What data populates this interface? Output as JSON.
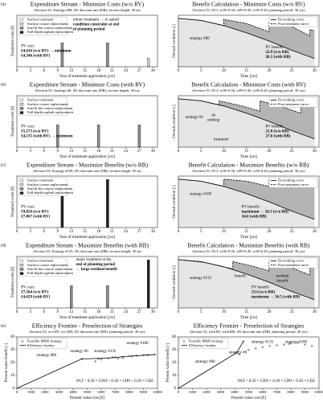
{
  "chart_data": [
    {
      "type": "bar",
      "panel_label": "(a)",
      "title": "Expenditure Stream - Minimize Costs (w/o RV)",
      "subtitle": "(Section 55; Strategy #80; 4% discount rate (DR); section length: 30 m)",
      "xlabel": "Year of treatment application [yrs]",
      "ylabel": "Treatment costs [€]",
      "xlim": [
        0,
        31
      ],
      "xticks": [
        0,
        3,
        6,
        9,
        12,
        15,
        18,
        21,
        24,
        27,
        30
      ],
      "ylim": [
        0,
        6000
      ],
      "legend": "upper left",
      "series": [
        {
          "name": "Surface treatment",
          "color": "#ffffff",
          "x": [],
          "values": []
        },
        {
          "name": "Surface course replacement",
          "color": "#d0d0d0",
          "x": [
            29
          ],
          "values": [
            1000
          ]
        },
        {
          "name": "Surf.& bin course replacement",
          "color": "#8a8a8a",
          "x": [
            10,
            20
          ],
          "values": [
            2800,
            2800
          ]
        },
        {
          "name": "Full-depth asphalt replacement",
          "color": "#222222",
          "x": [],
          "values": []
        }
      ],
      "notes": [
        [
          "minor treatment → to satisfy",
          "condition constraint at end",
          "of planning period"
        ],
        [
          "PV cost:",
          "€4,616 (w/o RV) → minimum",
          "€4,346 (with RV)"
        ]
      ]
    },
    {
      "type": "line",
      "title": "Benefit Calculation - Minimize Costs (w/o RV)",
      "subtitle": "(Section 55; OCI: wOI=0.50, wPI=0.30, wSI=0.20; planning period: 30 yrs)",
      "xlabel": "Time [yrs]",
      "ylabel": "Overall condition [-]",
      "xlim": [
        0,
        31
      ],
      "xticks": [
        0,
        5,
        10,
        15,
        20,
        25,
        30
      ],
      "ylim": [
        0,
        5
      ],
      "legend": "upper right",
      "series": [
        {
          "name": "Do-nothing curve",
          "color": "#000000",
          "x": [
            0,
            5,
            10,
            15,
            20,
            25,
            30
          ],
          "values": [
            4.7,
            4.5,
            4.0,
            3.3,
            2.5,
            1.6,
            0.8
          ]
        },
        {
          "name": "Post-treatment curve",
          "color": "#000000",
          "dash": true,
          "x": [
            0,
            5,
            10,
            10,
            15,
            20,
            20,
            25,
            29,
            29,
            30
          ],
          "values": [
            4.7,
            4.5,
            4.0,
            4.6,
            4.2,
            3.4,
            4.4,
            3.9,
            3.0,
            3.6,
            3.5
          ]
        }
      ],
      "notes": [
        [
          "strategy #80"
        ],
        [
          "PV benefit:",
          "22.9 (w/o RB)",
          "26.5 (with RB)"
        ]
      ]
    },
    {
      "type": "bar",
      "panel_label": "(b)",
      "title": "Expenditure Stream - Minimize Costs (with RV)",
      "subtitle": "(Section 55; Strategy #6; 4% discount rate (DR); section length: 30 m)",
      "xlabel": "Year of treatment application [yrs]",
      "ylabel": "Treatment costs [€]",
      "xlim": [
        0,
        31
      ],
      "xticks": [
        0,
        3,
        6,
        9,
        12,
        15,
        18,
        21,
        24,
        27,
        30
      ],
      "ylim": [
        0,
        6000
      ],
      "legend": "upper left",
      "series": [
        {
          "name": "Surface treatment",
          "color": "#ffffff",
          "x": [],
          "values": []
        },
        {
          "name": "Surface course replacement",
          "color": "#d0d0d0",
          "x": [],
          "values": []
        },
        {
          "name": "Surf.& bin course replacement",
          "color": "#8a8a8a",
          "x": [
            9,
            18,
            27
          ],
          "values": [
            2600,
            2600,
            2600
          ]
        },
        {
          "name": "Full-depth asphalt replacement",
          "color": "#222222",
          "x": [],
          "values": []
        }
      ],
      "notes": [
        [
          "PV cost:",
          "€5,573 (w/o RV)",
          "€4,135 (with RV) → minimum"
        ]
      ]
    },
    {
      "type": "line",
      "title": "Benefit Calculation - Minimize Costs (with RV)",
      "subtitle": "(Section 55; OCI: wOI=0.50, wPI=0.30, wSI=0.20; planning period: 30 yrs)",
      "xlabel": "Time [yrs]",
      "ylabel": "Overall condition [-]",
      "xlim": [
        0,
        31
      ],
      "xticks": [
        0,
        5,
        10,
        15,
        20,
        25,
        30
      ],
      "ylim": [
        0,
        5
      ],
      "legend": "upper right",
      "series": [
        {
          "name": "Do-nothing curve",
          "color": "#000000",
          "x": [
            0,
            5,
            10,
            15,
            20,
            25,
            30
          ],
          "values": [
            4.7,
            4.5,
            4.0,
            3.3,
            2.5,
            1.6,
            0.8
          ]
        },
        {
          "name": "Post-treatment curve",
          "color": "#000000",
          "dash": true,
          "x": [
            0,
            5,
            9,
            9,
            14,
            18,
            18,
            23,
            27,
            27,
            30
          ],
          "values": [
            4.7,
            4.5,
            4.1,
            4.5,
            4.0,
            3.5,
            4.5,
            3.9,
            3.3,
            4.5,
            4.2
          ]
        }
      ],
      "notes": [
        [
          "strategy #6"
        ],
        [
          "do",
          "nothing"
        ],
        [
          "treatment"
        ],
        [
          "PV benefit:",
          "21.0 (w/o RB)",
          "27.6 (with RB)"
        ]
      ]
    },
    {
      "type": "bar",
      "panel_label": "(c)",
      "title": "Expenditure Stream - Maximize Benefits (w/o RB)",
      "subtitle": "(Section 55; Strategy #180; 4% discount rate (DR); section length: 30 m)",
      "xlabel": "Year of treatment application [yrs]",
      "ylabel": "Treatment costs [€]",
      "xlim": [
        0,
        31
      ],
      "xticks": [
        0,
        3,
        6,
        9,
        12,
        15,
        18,
        21,
        24,
        27,
        30
      ],
      "ylim": [
        0,
        6000
      ],
      "legend": "upper left",
      "series": [
        {
          "name": "Surface treatment",
          "color": "#ffffff",
          "x": [],
          "values": []
        },
        {
          "name": "Surface course replacement",
          "color": "#d0d0d0",
          "x": [],
          "values": []
        },
        {
          "name": "Surf.& bin course replacement",
          "color": "#8a8a8a",
          "x": [],
          "values": []
        },
        {
          "name": "Full-depth asphalt replacement",
          "color": "#222222",
          "x": [
            10,
            20
          ],
          "values": [
            5600,
            5600
          ]
        }
      ],
      "notes": [
        [
          "PV cost:",
          "€9,824 (w/o RV)",
          "€7,867 (with RV)"
        ]
      ]
    },
    {
      "type": "line",
      "title": "Benefit Calculation - Maximize Benefits (w/o RB)",
      "subtitle": "(Section 55; OCI: wOI=0.50, wPI=0.30, wSI=0.20; planning period: 30 yrs)",
      "xlabel": "Time [yrs]",
      "ylabel": "Overall condition [-]",
      "xlim": [
        0,
        31
      ],
      "xticks": [
        0,
        5,
        10,
        15,
        20,
        25,
        30
      ],
      "ylim": [
        0,
        5
      ],
      "legend": "upper right",
      "series": [
        {
          "name": "Do-nothing curve",
          "color": "#000000",
          "x": [
            0,
            5,
            10,
            15,
            20,
            25,
            30
          ],
          "values": [
            4.7,
            4.5,
            4.0,
            3.3,
            2.5,
            1.6,
            0.8
          ]
        },
        {
          "name": "Post-treatment curve",
          "color": "#000000",
          "dash": true,
          "x": [
            0,
            5,
            10,
            10,
            15,
            20,
            20,
            25,
            30
          ],
          "values": [
            4.7,
            4.5,
            4.0,
            4.7,
            4.5,
            4.0,
            4.7,
            4.5,
            4.0
          ]
        }
      ],
      "notes": [
        [
          "strategy #180"
        ],
        [
          "PV benefit:",
          "maximum → 26.3 (w/o RB)",
          "34.6 (with RB)"
        ]
      ]
    },
    {
      "type": "bar",
      "panel_label": "(d)",
      "title": "Expenditure Stream - Maximize Benefits (with RB)",
      "subtitle": "(Section 55; Strategy #135; 4% discount rate (DR); section length: 30 m)",
      "xlabel": "Year of treatment application [yrs]",
      "ylabel": "Treatment costs [€]",
      "xlim": [
        0,
        31
      ],
      "xticks": [
        0,
        3,
        6,
        9,
        12,
        15,
        18,
        21,
        24,
        27,
        30
      ],
      "ylim": [
        0,
        6000
      ],
      "legend": "upper left",
      "series": [
        {
          "name": "Surface treatment",
          "color": "#ffffff",
          "x": [],
          "values": []
        },
        {
          "name": "Surface course replacement",
          "color": "#d0d0d0",
          "x": [],
          "values": []
        },
        {
          "name": "Surf.& bin course replacement",
          "color": "#8a8a8a",
          "x": [
            12,
            20
          ],
          "values": [
            2600,
            2600
          ]
        },
        {
          "name": "Full-depth asphalt replacement",
          "color": "#222222",
          "x": [
            29
          ],
          "values": [
            5600
          ]
        }
      ],
      "notes": [
        [
          "major treatment at the",
          "end of planning period",
          "→ large residual benefit"
        ],
        [
          "PV cost:",
          "€7,564 (w/o RV)",
          "€4,629 (with RV)"
        ]
      ]
    },
    {
      "type": "line",
      "title": "Benefit Calculation - Maximize Benefits (with RB)",
      "subtitle": "(Section 55; OCI: wOI=0.50, wPI=0.30, wSI=0.20; planning period: 30 yrs)",
      "xlabel": "Time [yrs]",
      "ylabel": "Overall condition [-]",
      "xlim": [
        0,
        31
      ],
      "xticks": [
        0,
        5,
        10,
        15,
        20,
        25,
        30
      ],
      "ylim": [
        0,
        5
      ],
      "legend": "upper right",
      "series": [
        {
          "name": "Do-nothing curve",
          "color": "#000000",
          "x": [
            0,
            5,
            10,
            15,
            20,
            25,
            30
          ],
          "values": [
            4.7,
            4.5,
            4.0,
            3.3,
            2.5,
            1.6,
            0.8
          ]
        },
        {
          "name": "Post-treatment curve",
          "color": "#000000",
          "dash": true,
          "x": [
            0,
            6,
            12,
            12,
            16,
            20,
            20,
            25,
            29,
            29,
            30
          ],
          "values": [
            4.7,
            4.4,
            3.8,
            4.5,
            4.1,
            3.6,
            4.5,
            3.9,
            3.2,
            4.7,
            4.7
          ]
        }
      ],
      "notes": [
        [
          "strategy #135"
        ],
        [
          "benefit"
        ],
        [
          "residual",
          "benefit"
        ],
        [
          "PV benefit:",
          "23.6 (w/o RB)",
          "maximum → 36.5 (with RB)"
        ]
      ]
    },
    {
      "type": "scatter",
      "panel_label": "(e)",
      "title": "Efficiency Frontier - Preselection of Strategies",
      "subtitle": "(Section 55; w/o RV, w/o RB; 4% discount rate (DR); planning period: 30 yrs)",
      "xlabel": "Present value cost [€]",
      "ylabel": "Present value benefit [-]",
      "xlim": [
        0,
        10000
      ],
      "xticks": [
        0,
        1000,
        2000,
        3000,
        4000,
        5000,
        6000,
        7000,
        8000,
        9000,
        10000
      ],
      "ylim": [
        0,
        40
      ],
      "yticks": [
        0,
        10,
        20,
        30,
        40
      ],
      "legend": "upper left",
      "series": [
        {
          "name": "Feasible M&R strategy",
          "color": "#9a9a9a",
          "x": [
            4616,
            5573,
            5800,
            6000,
            6500,
            6800,
            7000,
            7200,
            7500,
            7564,
            8000,
            8200,
            8500,
            9000,
            9300,
            9824
          ],
          "values": [
            22.9,
            21.0,
            23.0,
            22.5,
            23.5,
            24.2,
            24.0,
            23.2,
            24.5,
            23.6,
            25.0,
            24.8,
            25.4,
            25.8,
            25.9,
            26.3
          ]
        },
        {
          "name": "Efficiency frontier",
          "color": "#000000",
          "line": true,
          "x": [
            0,
            4616,
            6500,
            8000,
            9300,
            9824
          ],
          "values": [
            0,
            22.9,
            23.5,
            25.0,
            25.9,
            26.3
          ]
        }
      ],
      "notes": [
        [
          "strategy #80"
        ],
        [
          "strategy #6"
        ],
        [
          "strategy #135"
        ],
        [
          "strategy #180"
        ],
        [
          "OCI = 0.50 × CIOI + 0.30 × CIPI + 0.20 × CISI"
        ]
      ]
    },
    {
      "type": "scatter",
      "title": "Efficiency Frontier - Preselection of Strategies",
      "subtitle": "(Section 55; with RV, with RB; 4% discount rate (DR); planning period: 30 yrs)",
      "xlabel": "Present value cost [€]",
      "ylabel": "Present value benefit [-]",
      "xlim": [
        0,
        10000
      ],
      "xticks": [
        0,
        1000,
        2000,
        3000,
        4000,
        5000,
        6000,
        7000,
        8000,
        9000,
        10000
      ],
      "ylim": [
        0,
        40
      ],
      "yticks": [
        0,
        10,
        20,
        30,
        40
      ],
      "legend": "upper left",
      "series": [
        {
          "name": "Feasible M&R strategy",
          "color": "#9a9a9a",
          "x": [
            4135,
            4346,
            4629,
            5000,
            5500,
            6000,
            6500,
            7000,
            7500,
            7867,
            8000,
            8500,
            9000,
            9500
          ],
          "values": [
            27.6,
            26.5,
            36.5,
            30,
            31,
            32,
            33,
            33.5,
            34,
            34.6,
            35,
            35.5,
            34,
            33
          ]
        },
        {
          "name": "Efficiency frontier",
          "color": "#000000",
          "line": true,
          "x": [
            0,
            4135,
            4629
          ],
          "values": [
            0,
            27.6,
            36.5
          ]
        }
      ],
      "notes": [
        [
          "strategy #80"
        ],
        [
          "strategy #6"
        ],
        [
          "strategy #135"
        ],
        [
          "strategy #180"
        ],
        [
          "OCI = 0.50 × CIOI + 0.30 × CIPI + 0.20 × CISI"
        ]
      ]
    }
  ]
}
